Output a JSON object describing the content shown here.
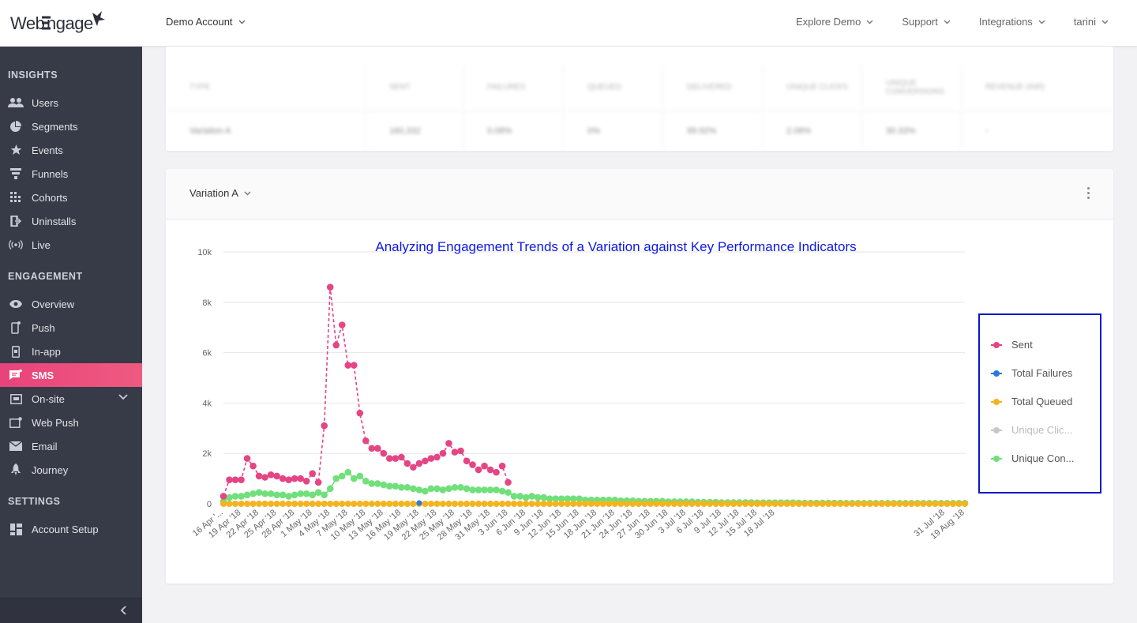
{
  "brand": {
    "logo_text": "WebEngage",
    "accent": "#e8437c"
  },
  "topbar": {
    "account": "Demo Account",
    "nav": [
      "Explore Demo",
      "Support",
      "Integrations",
      "tarini"
    ]
  },
  "sidebar": {
    "sections": [
      {
        "title": "INSIGHTS",
        "items": [
          {
            "label": "Users",
            "icon": "users-icon"
          },
          {
            "label": "Segments",
            "icon": "pie-icon"
          },
          {
            "label": "Events",
            "icon": "star-icon"
          },
          {
            "label": "Funnels",
            "icon": "funnel-icon"
          },
          {
            "label": "Cohorts",
            "icon": "grid-icon"
          },
          {
            "label": "Uninstalls",
            "icon": "uninstall-icon"
          },
          {
            "label": "Live",
            "icon": "broadcast-icon"
          }
        ]
      },
      {
        "title": "ENGAGEMENT",
        "items": [
          {
            "label": "Overview",
            "icon": "eye-icon"
          },
          {
            "label": "Push",
            "icon": "mobile-push-icon"
          },
          {
            "label": "In-app",
            "icon": "mobile-inapp-icon"
          },
          {
            "label": "SMS",
            "icon": "sms-icon",
            "active": true
          },
          {
            "label": "On-site",
            "icon": "onsite-icon",
            "expandable": true
          },
          {
            "label": "Web Push",
            "icon": "webpush-icon"
          },
          {
            "label": "Email",
            "icon": "email-icon"
          },
          {
            "label": "Journey",
            "icon": "rocket-icon"
          }
        ]
      },
      {
        "title": "SETTINGS",
        "items": [
          {
            "label": "Account Setup",
            "icon": "dashboard-icon"
          }
        ]
      }
    ]
  },
  "stats_table": {
    "headers": [
      "TYPE",
      "SENT",
      "FAILURES",
      "QUEUED",
      "DELIVERED",
      "UNIQUE CLICKS",
      "UNIQUE CONVERSIONS",
      "REVENUE (INR)"
    ],
    "row": [
      "Variation A",
      "160,332",
      "0.08%",
      "0%",
      "99.92%",
      "2.08%",
      "30.33%",
      "-"
    ]
  },
  "variation": {
    "selected": "Variation A"
  },
  "chart_data": {
    "type": "line",
    "title": "Analyzing Engagement Trends of a Variation against Key Performance Indicators",
    "ylim": [
      0,
      10000
    ],
    "yticks": [
      "0",
      "2k",
      "4k",
      "6k",
      "8k",
      "10k"
    ],
    "x_start": "16 Apr '18",
    "x_end": "19 Aug '18",
    "xtick_labels": [
      "16 Apr '...",
      "19 Apr '18",
      "22 Apr '18",
      "25 Apr '18",
      "28 Apr '18",
      "1 May '18",
      "4 May '18",
      "7 May '18",
      "10 May '18",
      "13 May '18",
      "16 May '18",
      "19 May '18",
      "22 May '18",
      "25 May '18",
      "28 May '18",
      "31 May '18",
      "3 Jun '18",
      "6 Jun '18",
      "9 Jun '18",
      "12 Jun '18",
      "15 Jun '18",
      "18 Jun '18",
      "21 Jun '18",
      "24 Jun '18",
      "27 Jun '18",
      "30 Jun '18",
      "3 Jul '18",
      "6 Jul '18",
      "9 Jul '18",
      "12 Jul '18",
      "15 Jul '18",
      "18 Jul '18",
      "31 Jul '18",
      "19 Aug '18"
    ],
    "grid": true,
    "legend_position": "right",
    "series": [
      {
        "name": "Sent",
        "color": "#e54584",
        "dashed": true,
        "values": [
          300,
          950,
          950,
          950,
          1800,
          1500,
          1100,
          1050,
          1150,
          1100,
          1000,
          950,
          1000,
          1000,
          900,
          1200,
          850,
          3100,
          8600,
          6300,
          7100,
          5500,
          5500,
          3600,
          2500,
          2200,
          2200,
          2000,
          1800,
          1800,
          1850,
          1600,
          1450,
          1600,
          1700,
          1800,
          1850,
          2000,
          2400,
          2050,
          2100,
          1700,
          1550,
          1350,
          1500,
          1350,
          1250,
          1500,
          850
        ]
      },
      {
        "name": "Total Failures",
        "color": "#2a7ae2",
        "values": [
          0,
          0,
          0,
          0,
          0,
          0,
          0,
          0,
          0,
          0,
          0,
          0,
          0,
          0,
          0,
          0,
          0,
          0,
          0,
          0,
          0,
          0,
          0,
          0,
          0,
          0,
          0,
          0,
          0,
          0,
          0,
          0,
          0,
          30,
          0
        ]
      },
      {
        "name": "Total Queued",
        "color": "#f2b420",
        "values": []
      },
      {
        "name": "Unique Clic...",
        "color": "#c8c8c8",
        "hidden": true,
        "values": []
      },
      {
        "name": "Unique Con...",
        "color": "#6fe07a",
        "values": [
          100,
          250,
          300,
          300,
          350,
          400,
          450,
          400,
          400,
          350,
          350,
          300,
          350,
          400,
          400,
          350,
          450,
          350,
          600,
          1000,
          1100,
          1250,
          1000,
          1100,
          900,
          800,
          800,
          750,
          700,
          700,
          650,
          650,
          600,
          550,
          500,
          600,
          600,
          550,
          600,
          650,
          650,
          600,
          550,
          550,
          550,
          550,
          550,
          500,
          450,
          300,
          300,
          250,
          300,
          250,
          250,
          200,
          200,
          200,
          200,
          200,
          200,
          150,
          150,
          150,
          150,
          150,
          150,
          120,
          120,
          120,
          100,
          100,
          100,
          100,
          100,
          80,
          80,
          80,
          80,
          80,
          60,
          60,
          60,
          60,
          50,
          50,
          50,
          50,
          50,
          50,
          40,
          40,
          40,
          40,
          40,
          40,
          40,
          30,
          30,
          30,
          30,
          30,
          30,
          30,
          30,
          20,
          20,
          20,
          20,
          20,
          20,
          20
        ]
      }
    ]
  }
}
